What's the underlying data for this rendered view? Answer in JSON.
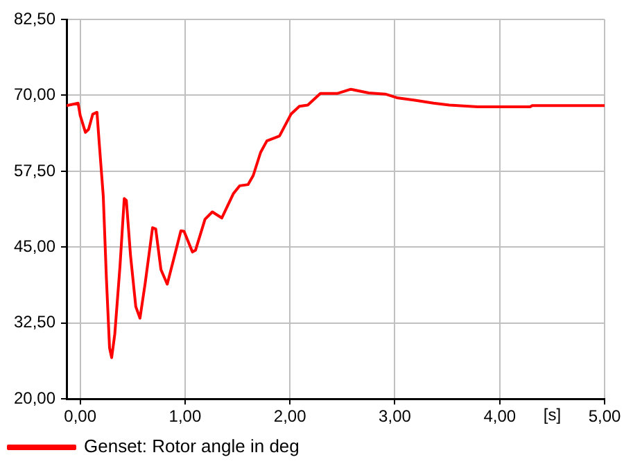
{
  "chart_data": {
    "type": "line",
    "xlabel": "[s]",
    "x": [
      -0.13,
      -0.02,
      0.0,
      0.05,
      0.08,
      0.12,
      0.16,
      0.18,
      0.22,
      0.25,
      0.28,
      0.3,
      0.33,
      0.38,
      0.42,
      0.44,
      0.48,
      0.53,
      0.57,
      0.62,
      0.69,
      0.72,
      0.77,
      0.83,
      0.9,
      0.96,
      0.99,
      1.07,
      1.1,
      1.19,
      1.26,
      1.35,
      1.46,
      1.52,
      1.6,
      1.65,
      1.72,
      1.78,
      1.9,
      2.01,
      2.09,
      2.17,
      2.29,
      2.45,
      2.58,
      2.75,
      2.91,
      3.02,
      3.19,
      3.37,
      3.52,
      3.79,
      4.29,
      4.31,
      5.0
    ],
    "series": [
      {
        "name": "Genset: Rotor angle in deg",
        "color": "#ff0000",
        "values": [
          68.3,
          68.7,
          66.7,
          63.9,
          64.4,
          66.9,
          67.2,
          62.5,
          53.4,
          39.8,
          28.4,
          26.8,
          30.7,
          42.0,
          53.0,
          52.7,
          43.6,
          35.2,
          33.3,
          39.1,
          48.2,
          48.0,
          41.3,
          38.9,
          43.6,
          47.7,
          47.6,
          44.2,
          44.5,
          49.6,
          50.8,
          49.8,
          53.8,
          55.1,
          55.3,
          56.8,
          60.6,
          62.5,
          63.3,
          66.9,
          68.2,
          68.4,
          70.3,
          70.3,
          71.0,
          70.4,
          70.2,
          69.6,
          69.2,
          68.7,
          68.4,
          68.1,
          68.1,
          68.3,
          68.3
        ]
      }
    ],
    "xlim": [
      -0.13,
      5.0
    ],
    "xticks": [
      {
        "value": 0,
        "label": "0,00"
      },
      {
        "value": 1,
        "label": "1,00"
      },
      {
        "value": 2,
        "label": "2,00"
      },
      {
        "value": 3,
        "label": "3,00"
      },
      {
        "value": 4,
        "label": "4,00"
      },
      {
        "value": 5,
        "label": "5,00"
      }
    ],
    "ylim": [
      20,
      82.5
    ],
    "yticks": [
      {
        "value": 20,
        "label": "20,00"
      },
      {
        "value": 32.5,
        "label": "32,50"
      },
      {
        "value": 45,
        "label": "45,00"
      },
      {
        "value": 57.5,
        "label": "57,50"
      },
      {
        "value": 70,
        "label": "70,00"
      },
      {
        "value": 82.5,
        "label": "82,50"
      }
    ],
    "grid": true,
    "legend": "bottom",
    "marker": "none",
    "line_style": "solid"
  }
}
